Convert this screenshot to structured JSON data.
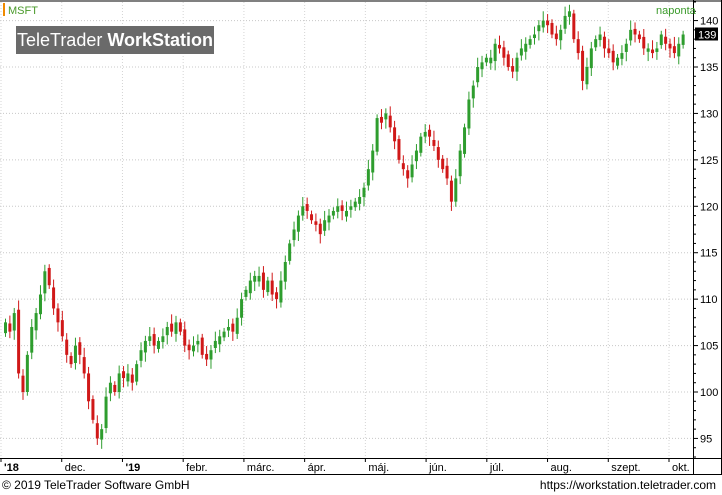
{
  "ticker": "MSFT",
  "period": "naponta",
  "logo": {
    "light": "TeleTrader",
    "bold": "WorkStation"
  },
  "footer": {
    "left": "© 2019 TeleTrader Software GmbH",
    "right": "https://workstation.teletrader.com"
  },
  "chart_data": {
    "type": "candlestick",
    "ylim": [
      93,
      142
    ],
    "yticks": [
      95,
      100,
      105,
      110,
      115,
      120,
      125,
      130,
      135,
      140
    ],
    "last_price": "139",
    "x_labels": [
      "'18",
      "dec.",
      "'19",
      "febr.",
      "márc.",
      "ápr.",
      "máj.",
      "jún.",
      "júl.",
      "aug.",
      "szept.",
      "okt."
    ],
    "colors": {
      "up": "#2e9d2e",
      "down": "#d01818"
    },
    "closes": [
      107.5,
      106.5,
      108.5,
      102.0,
      100.0,
      104.0,
      107.0,
      108.5,
      110.5,
      113.0,
      111.5,
      109.0,
      107.5,
      106.0,
      104.0,
      103.0,
      105.0,
      104.0,
      102.0,
      99.0,
      97.0,
      95.0,
      96.0,
      99.5,
      101.0,
      100.0,
      102.0,
      101.5,
      102.0,
      101.0,
      103.0,
      104.5,
      105.5,
      106.0,
      105.0,
      105.5,
      106.0,
      107.0,
      106.5,
      107.5,
      106.5,
      105.0,
      104.5,
      105.0,
      105.5,
      104.0,
      103.5,
      104.5,
      105.5,
      106.0,
      106.5,
      107.0,
      106.5,
      108.0,
      110.0,
      111.0,
      112.0,
      112.5,
      112.5,
      111.0,
      112.0,
      110.5,
      110.0,
      112.0,
      114.0,
      116.0,
      117.5,
      119.0,
      120.0,
      119.5,
      118.5,
      118.0,
      117.0,
      118.5,
      119.0,
      119.5,
      120.0,
      119.5,
      119.5,
      120.0,
      120.5,
      121.0,
      122.0,
      124.0,
      126.0,
      129.5,
      129.0,
      130.0,
      128.5,
      127.0,
      125.0,
      124.0,
      123.0,
      124.5,
      126.0,
      127.5,
      128.0,
      127.5,
      126.5,
      125.0,
      124.0,
      123.0,
      120.5,
      123.0,
      126.0,
      128.5,
      131.5,
      133.0,
      135.0,
      135.5,
      136.0,
      136.0,
      137.5,
      137.0,
      136.0,
      135.0,
      134.5,
      136.0,
      137.0,
      137.5,
      138.0,
      138.5,
      139.5,
      140.0,
      139.5,
      138.5,
      138.0,
      139.0,
      140.5,
      141.0,
      138.0,
      136.5,
      133.5,
      135.0,
      137.0,
      138.0,
      138.5,
      137.0,
      136.5,
      135.5,
      136.0,
      136.5,
      137.5,
      139.0,
      138.5,
      138.0,
      137.0,
      137.0,
      136.5,
      137.0,
      138.5,
      137.5,
      137.0,
      136.5,
      137.5,
      138.5
    ]
  }
}
